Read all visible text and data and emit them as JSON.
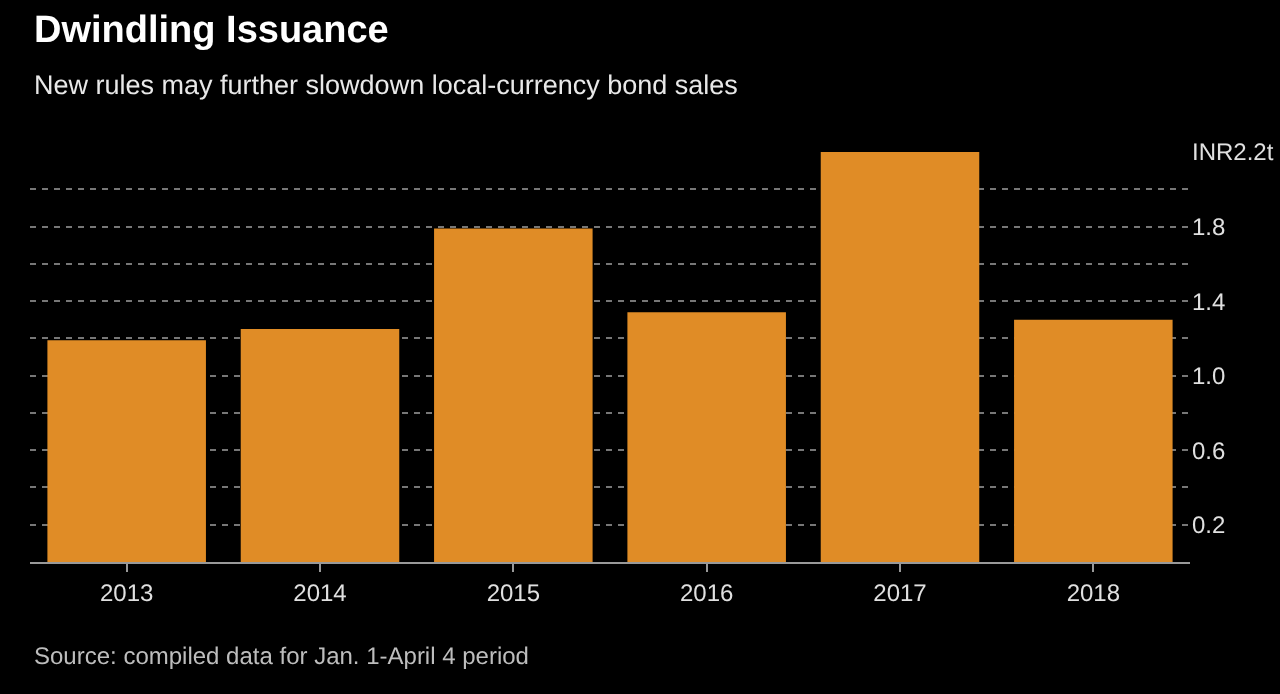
{
  "chart_data": {
    "type": "bar",
    "title": "Dwindling Issuance",
    "subtitle": "New rules may further slowdown local-currency bond sales",
    "categories": [
      "2013",
      "2014",
      "2015",
      "2016",
      "2017",
      "2018"
    ],
    "values": [
      1.19,
      1.25,
      1.79,
      1.34,
      2.2,
      1.3
    ],
    "color": "#e08c26",
    "ylim": [
      0,
      2.2
    ],
    "yticks": [
      {
        "value": 0,
        "label": null
      },
      0.2,
      {
        "value": 0.4,
        "label": null
      },
      0.6,
      {
        "value": 0.8,
        "label": null
      },
      {
        "value": 1.0,
        "label": "1.0"
      },
      {
        "value": 1.2,
        "label": null
      },
      1.4,
      {
        "value": 1.6,
        "label": null
      },
      1.8,
      {
        "value": 2.0,
        "label": null
      },
      {
        "value": 2.2,
        "label": "INR2.2t"
      }
    ],
    "grid": "y",
    "annotations": [
      "Source: compiled data for Jan. 1-April 4 period"
    ]
  }
}
